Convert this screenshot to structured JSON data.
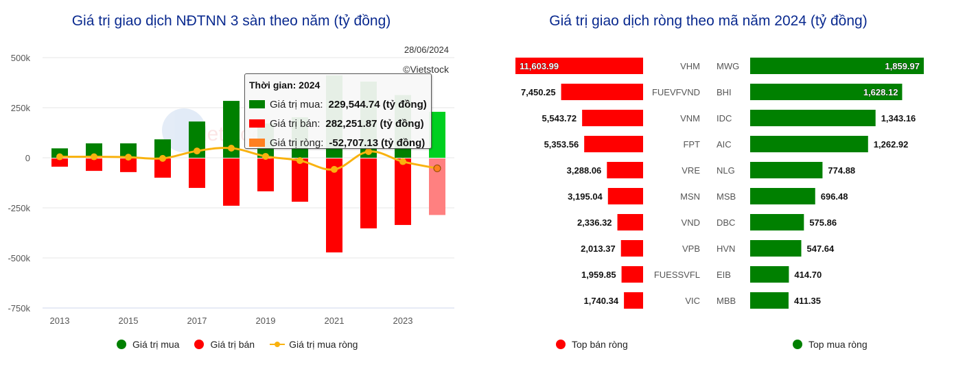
{
  "left": {
    "title": "Giá trị giao dịch NĐTNN 3 sàn theo năm (tỷ đồng)",
    "date": "28/06/2024",
    "copyright": "©Vietstock",
    "legend": [
      {
        "label": "Giá trị mua",
        "color": "#008000"
      },
      {
        "label": "Giá trị bán",
        "color": "#ff0000"
      },
      {
        "label": "Giá trị mua ròng",
        "color": "#f9b20f"
      }
    ],
    "tooltip": {
      "title": "Thời gian: 2024",
      "rows": [
        {
          "label": "Giá trị mua:",
          "value": "229,544.74",
          "unit": "(tỷ đồng)",
          "color": "#008000"
        },
        {
          "label": "Giá trị bán:",
          "value": "282,251.87",
          "unit": "(tỷ đồng)",
          "color": "#ff0000"
        },
        {
          "label": "Giá trị ròng:",
          "value": "-52,707.13",
          "unit": "(tỷ đồng)",
          "color": "#ff8020"
        }
      ]
    }
  },
  "right": {
    "title": "Giá trị giao dịch ròng theo mã năm 2024 (tỷ đồng)",
    "legend": [
      {
        "label": "Top bán ròng",
        "color": "#ff0000"
      },
      {
        "label": "Top mua ròng",
        "color": "#008000"
      }
    ]
  },
  "chart_data": [
    {
      "type": "bar",
      "title": "Giá trị giao dịch NĐTNN 3 sàn theo năm (tỷ đồng)",
      "xlabel": "",
      "ylabel": "",
      "ylim": [
        -750000,
        500000
      ],
      "yticks": [
        "500k",
        "250k",
        "0",
        "-250k",
        "-500k",
        "-750k"
      ],
      "ytick_values": [
        500000,
        250000,
        0,
        -250000,
        -500000,
        -750000
      ],
      "xtick_labels": [
        "2013",
        "2015",
        "2017",
        "2019",
        "2021",
        "2023"
      ],
      "grid": true,
      "legend_position": "bottom",
      "categories": [
        "2013",
        "2014",
        "2015",
        "2016",
        "2017",
        "2018",
        "2019",
        "2020",
        "2021",
        "2022",
        "2023",
        "2024"
      ],
      "series": [
        {
          "name": "Giá trị mua",
          "type": "bar",
          "color": "#008000",
          "values": [
            47000,
            72000,
            72000,
            92000,
            181000,
            284000,
            171000,
            202000,
            411000,
            380000,
            313000,
            229544.74
          ]
        },
        {
          "name": "Giá trị bán",
          "type": "bar",
          "color": "#ff0000",
          "values": [
            -41000,
            -62000,
            -68000,
            -96000,
            -147000,
            -236000,
            -164000,
            -216000,
            -469000,
            -349000,
            -332000,
            -282251.87
          ]
        },
        {
          "name": "Giá trị mua ròng",
          "type": "line",
          "color": "#f9b20f",
          "values": [
            5000,
            5000,
            3000,
            -3000,
            34000,
            48000,
            7000,
            -14000,
            -58000,
            31000,
            -19000,
            -52707.13
          ]
        }
      ],
      "highlighted_category": "2024"
    },
    {
      "type": "bar",
      "orientation": "horizontal",
      "title": "Giá trị giao dịch ròng theo mã năm 2024 (tỷ đồng)",
      "legend_position": "bottom",
      "series": [
        {
          "name": "Top bán ròng",
          "color": "#ff0000",
          "categories": [
            "VHM",
            "FUEVFVND",
            "VNM",
            "FPT",
            "VRE",
            "MSN",
            "VND",
            "VPB",
            "FUESSVFL",
            "VIC"
          ],
          "values": [
            11603.99,
            7450.25,
            5543.72,
            5353.56,
            3288.06,
            3195.04,
            2336.32,
            2013.37,
            1959.85,
            1740.34
          ],
          "labels": [
            "11,603.99",
            "7,450.25",
            "5,543.72",
            "5,353.56",
            "3,288.06",
            "3,195.04",
            "2,336.32",
            "2,013.37",
            "1,959.85",
            "1,740.34"
          ]
        },
        {
          "name": "Top mua ròng",
          "color": "#008000",
          "categories": [
            "MWG",
            "BHI",
            "IDC",
            "AIC",
            "NLG",
            "MSB",
            "DBC",
            "HVN",
            "EIB",
            "MBB"
          ],
          "values": [
            1859.97,
            1628.12,
            1343.16,
            1262.92,
            774.88,
            696.48,
            575.86,
            547.64,
            414.7,
            411.35
          ],
          "labels": [
            "1,859.97",
            "1,628.12",
            "1,343.16",
            "1,262.92",
            "774.88",
            "696.48",
            "575.86",
            "547.64",
            "414.70",
            "411.35"
          ]
        }
      ]
    }
  ]
}
